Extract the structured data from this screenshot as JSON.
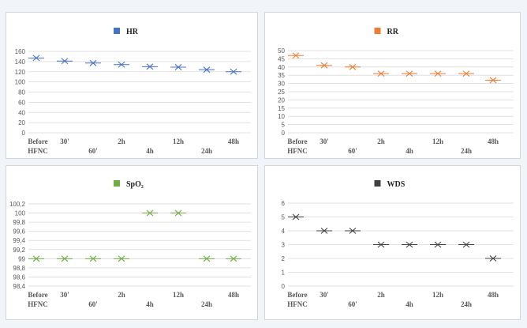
{
  "chart_data": [
    {
      "type": "scatter",
      "title": "HR",
      "series": [
        {
          "name": "HR",
          "values": [
            147,
            141,
            137,
            134,
            130,
            129,
            124,
            120
          ]
        }
      ],
      "categories": [
        "Before HFNC",
        "30'",
        "60'",
        "2h",
        "4h",
        "12h",
        "24h",
        "48h"
      ],
      "x_lines": [
        [
          "Before",
          "HFNC"
        ],
        [
          "30'"
        ],
        [
          "60'"
        ],
        [
          "2h"
        ],
        [
          "4h"
        ],
        [
          "12h"
        ],
        [
          "24h"
        ],
        [
          "48h"
        ]
      ],
      "ylim": [
        0,
        160
      ],
      "yticks": [
        "0",
        "20",
        "40",
        "60",
        "80",
        "100",
        "120",
        "140",
        "160"
      ],
      "color": "#4472c4",
      "grid": true,
      "legend": "top-center"
    },
    {
      "type": "scatter",
      "title": "RR",
      "series": [
        {
          "name": "RR",
          "values": [
            47,
            41,
            40,
            36,
            36,
            36,
            36,
            32
          ]
        }
      ],
      "categories": [
        "Before HFNC",
        "30'",
        "60'",
        "2h",
        "4h",
        "12h",
        "24h",
        "48h"
      ],
      "x_lines": [
        [
          "Before",
          "HFNC"
        ],
        [
          "30'"
        ],
        [
          "60'"
        ],
        [
          "2h"
        ],
        [
          "4h"
        ],
        [
          "12h"
        ],
        [
          "24h"
        ],
        [
          "48h"
        ]
      ],
      "ylim": [
        0,
        50
      ],
      "yticks": [
        "0",
        "5",
        "10",
        "15",
        "20",
        "25",
        "30",
        "35",
        "40",
        "45",
        "50"
      ],
      "color": "#ed7d31",
      "grid": true,
      "legend": "top-center"
    },
    {
      "type": "scatter",
      "title": "SpO₂",
      "series": [
        {
          "name": "SpO₂",
          "values": [
            99,
            99,
            99,
            99,
            100,
            100,
            99,
            99
          ]
        }
      ],
      "categories": [
        "Before HFNC",
        "30'",
        "60'",
        "2h",
        "4h",
        "12h",
        "24h",
        "48h"
      ],
      "x_lines": [
        [
          "Before",
          "HFNC"
        ],
        [
          "30'"
        ],
        [
          "60'"
        ],
        [
          "2h"
        ],
        [
          "4h"
        ],
        [
          "12h"
        ],
        [
          "24h"
        ],
        [
          "48h"
        ]
      ],
      "ylim": [
        98.4,
        100.2
      ],
      "yticks": [
        "98,4",
        "98,6",
        "98,8",
        "99",
        "99,2",
        "99,4",
        "99,6",
        "99,8",
        "100",
        "100,2"
      ],
      "color": "#70ad47",
      "grid": true,
      "legend": "top-center"
    },
    {
      "type": "scatter",
      "title": "WDS",
      "series": [
        {
          "name": "WDS",
          "values": [
            5,
            4,
            4,
            3,
            3,
            3,
            3,
            2
          ]
        }
      ],
      "categories": [
        "Before HFNC",
        "30'",
        "60'",
        "2h",
        "4h",
        "12h",
        "24h",
        "48h"
      ],
      "x_lines": [
        [
          "Before",
          "HFNC"
        ],
        [
          "30'"
        ],
        [
          "60'"
        ],
        [
          "2h"
        ],
        [
          "4h"
        ],
        [
          "12h"
        ],
        [
          "24h"
        ],
        [
          "48h"
        ]
      ],
      "ylim": [
        0,
        6
      ],
      "yticks": [
        "0",
        "1",
        "2",
        "3",
        "4",
        "5",
        "6"
      ],
      "color": "#404040",
      "grid": true,
      "legend": "top-center"
    }
  ]
}
